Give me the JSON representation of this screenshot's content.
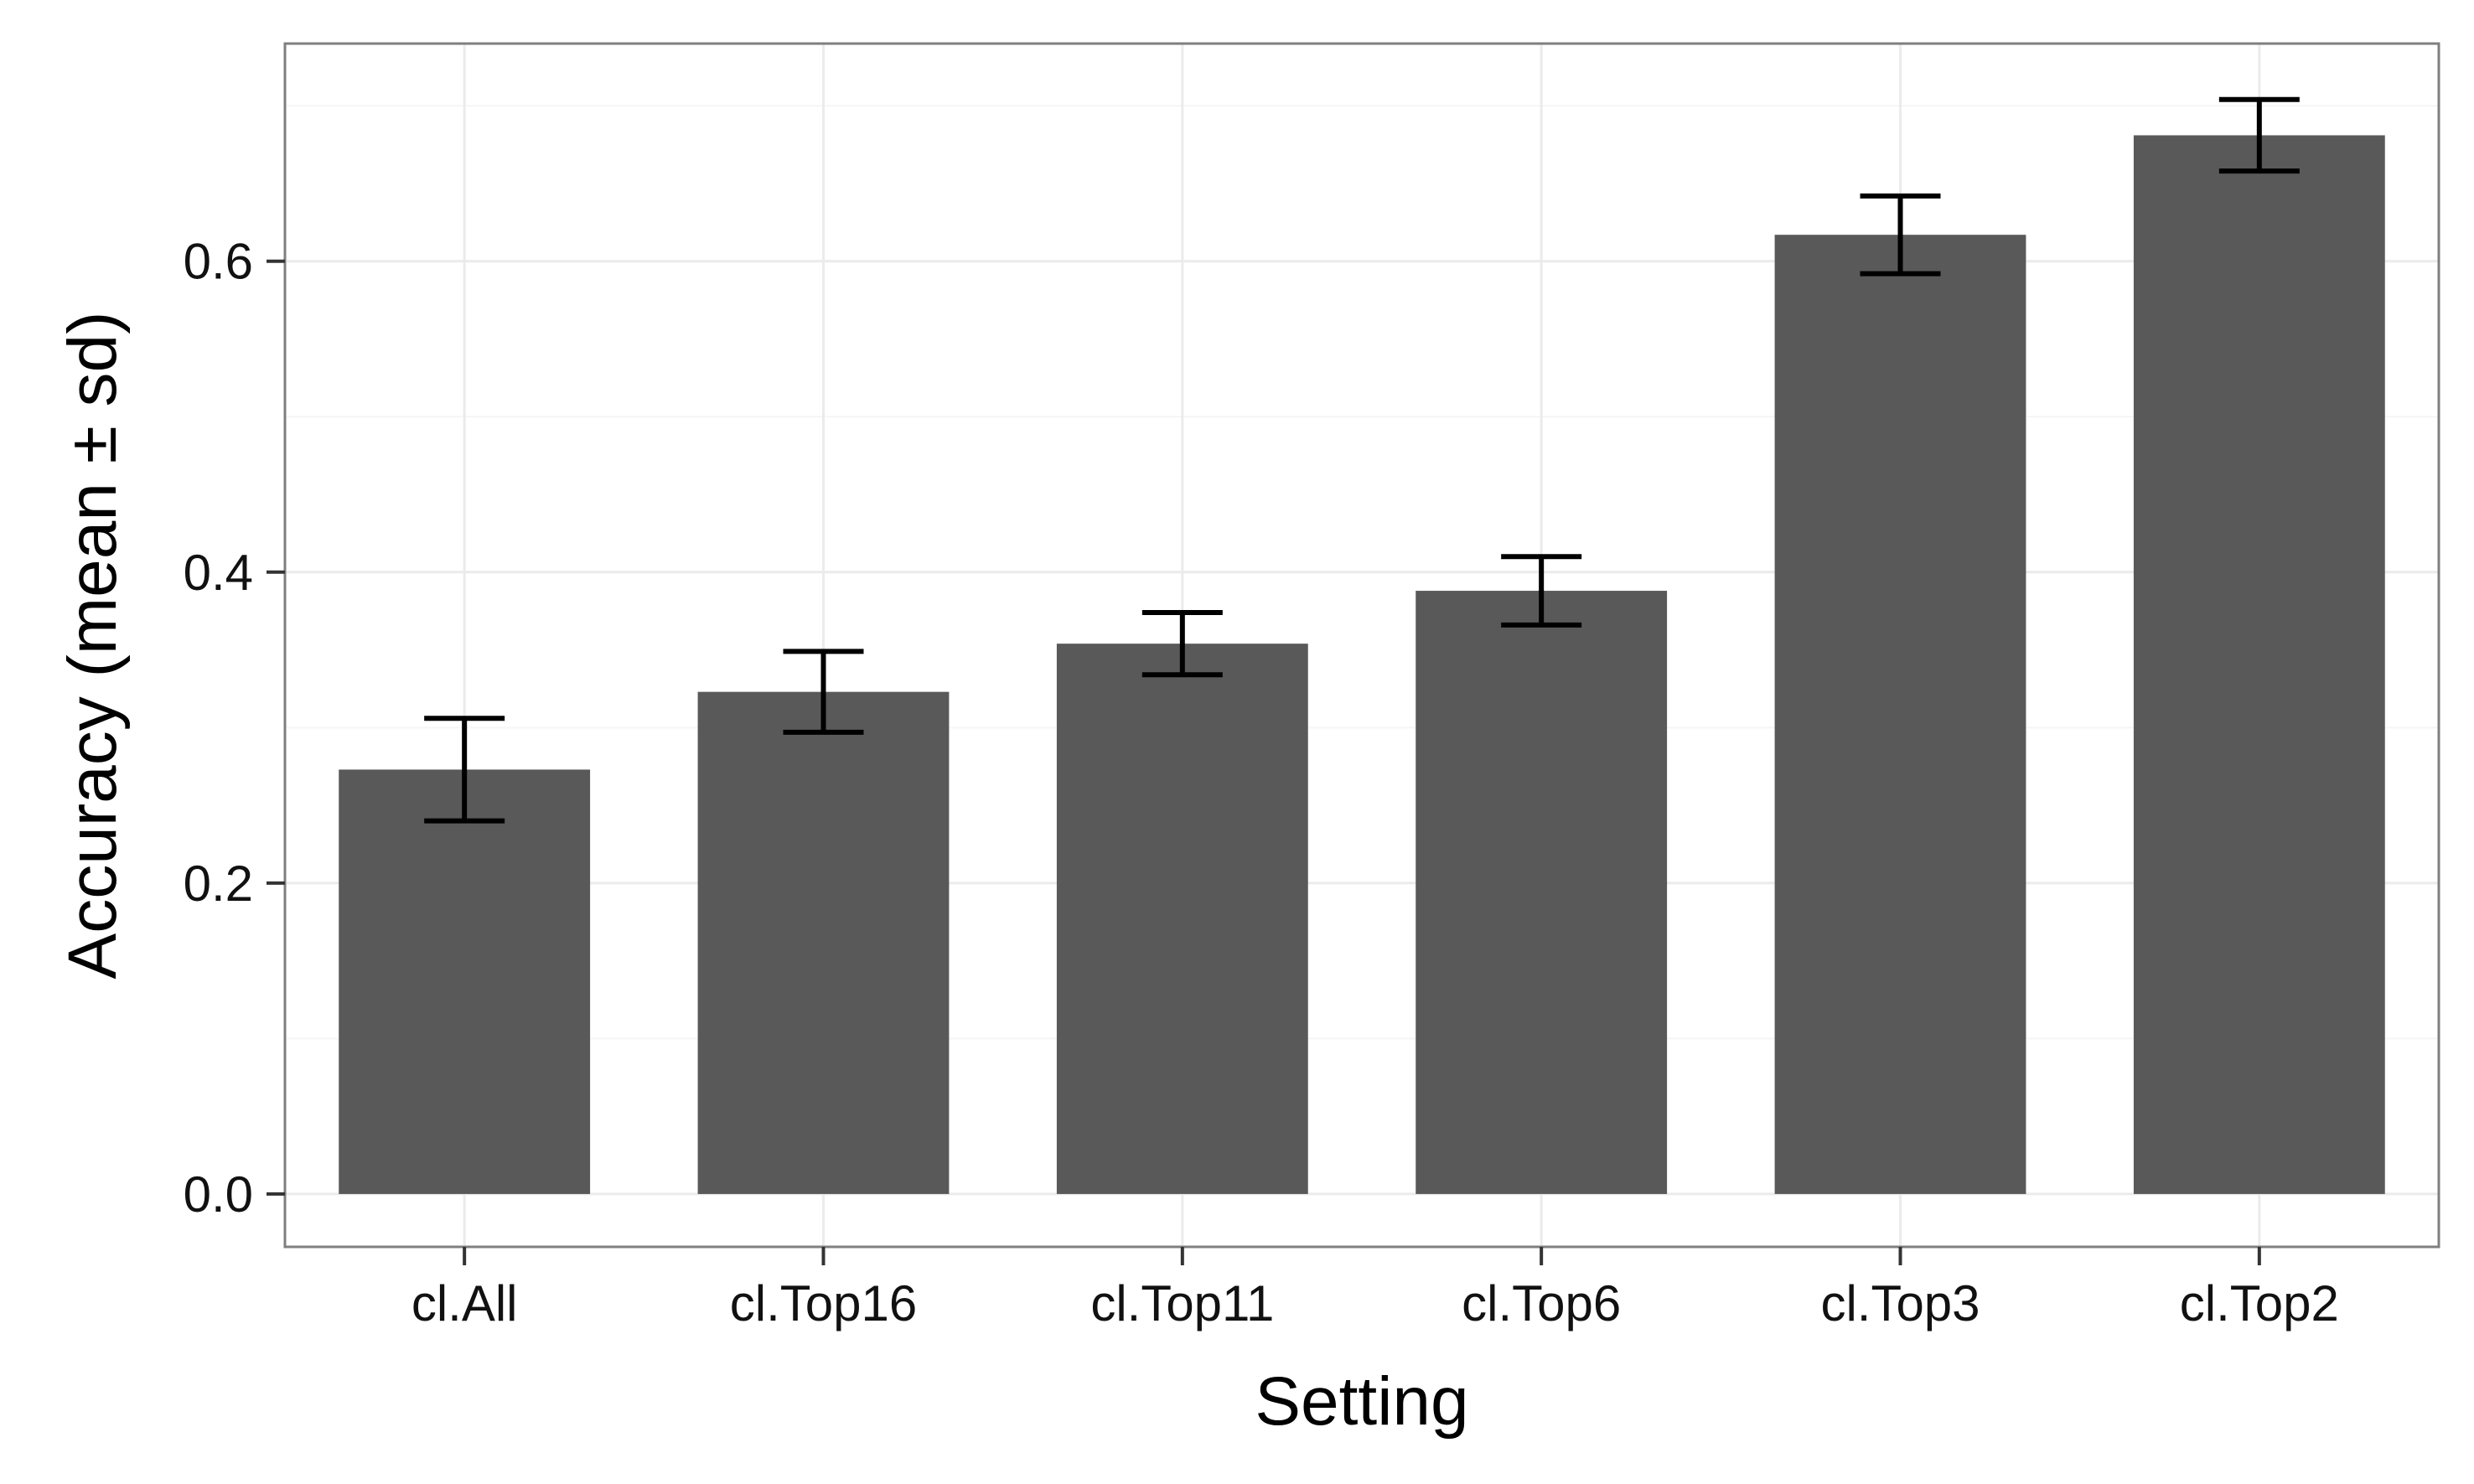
{
  "chart_data": {
    "type": "bar",
    "title": "",
    "xlabel": "Setting",
    "ylabel": "Accuracy (mean ± sd)",
    "categories": [
      "cl.All",
      "cl.Top16",
      "cl.Top11",
      "cl.Top6",
      "cl.Top3",
      "cl.Top2"
    ],
    "series": [
      {
        "values": [
          0.273,
          0.323,
          0.354,
          0.388,
          0.617,
          0.681
        ],
        "sd": [
          0.033,
          0.026,
          0.02,
          0.022,
          0.025,
          0.023
        ]
      }
    ],
    "ylim": [
      -0.034,
      0.74
    ],
    "yticks": [
      0.0,
      0.2,
      0.4,
      0.6
    ],
    "ytick_labels": [
      "0.0",
      "0.2",
      "0.4",
      "0.6"
    ],
    "grid": true,
    "legend": "none",
    "colors": {
      "bar": "#595959",
      "errorbar": "#000000",
      "panel_border": "#7f7f7f",
      "grid_major": "#ebebeb",
      "grid_minor": "#f5f5f5"
    }
  }
}
